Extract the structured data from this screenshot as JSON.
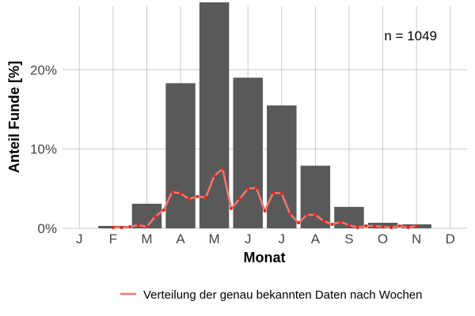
{
  "chart_data": {
    "type": "bar",
    "categories": [
      "J",
      "F",
      "M",
      "A",
      "M",
      "J",
      "J",
      "A",
      "S",
      "O",
      "N",
      "D"
    ],
    "values": [
      0.0,
      0.3,
      3.1,
      18.3,
      28.5,
      19.0,
      15.5,
      7.9,
      2.7,
      0.7,
      0.5,
      0.0
    ],
    "xlabel": "Monat",
    "ylabel": "Anteil Funde [%]",
    "ylim": [
      0,
      28
    ],
    "yticks": [
      0,
      10,
      20
    ],
    "ytick_labels": [
      "0%",
      "10%",
      "20%"
    ],
    "grid": true,
    "bar_color": "#595959",
    "annotation": "n = 1049",
    "line_series": {
      "name": "Verteilung der genau bekannten Daten nach Wochen",
      "color": "#f8766d",
      "x": [
        2.0,
        2.25,
        2.5,
        2.75,
        3.0,
        3.25,
        3.5,
        3.75,
        4.0,
        4.25,
        4.5,
        4.75,
        5.0,
        5.25,
        5.5,
        5.75,
        6.0,
        6.25,
        6.5,
        6.75,
        7.0,
        7.25,
        7.5,
        7.75,
        8.0,
        8.25,
        8.5,
        8.75,
        9.0,
        9.25,
        9.5,
        9.75,
        10.0,
        10.25,
        10.5,
        10.75,
        11.0
      ],
      "values": [
        0.1,
        0.1,
        0.2,
        0.4,
        0.2,
        1.5,
        2.3,
        4.6,
        4.4,
        3.7,
        4.0,
        3.9,
        6.6,
        7.5,
        2.5,
        3.7,
        5.0,
        5.1,
        2.2,
        4.5,
        4.4,
        1.8,
        0.7,
        1.7,
        1.7,
        0.9,
        0.5,
        0.8,
        0.4,
        0.1,
        0.3,
        0.3,
        0.2,
        0.1,
        0.3,
        0.1,
        0.3
      ]
    }
  }
}
